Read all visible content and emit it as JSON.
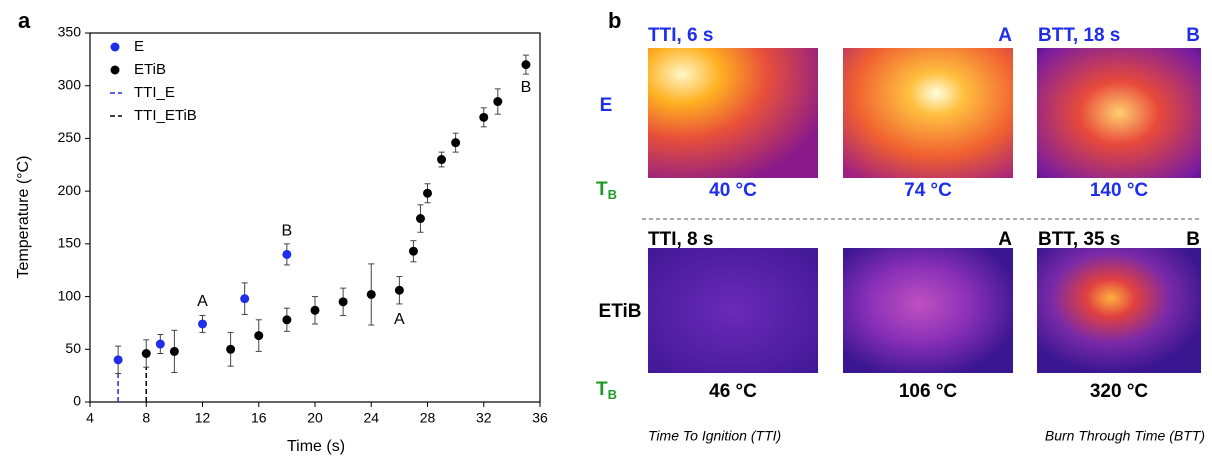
{
  "chart_data": {
    "type": "scatter",
    "panel_label": "a",
    "xlabel": "Time (s)",
    "ylabel": "Temperature (°C)",
    "xlim": [
      4,
      36
    ],
    "xticks": [
      4,
      8,
      12,
      16,
      20,
      24,
      28,
      32,
      36
    ],
    "ylim": [
      0,
      350
    ],
    "yticks": [
      0,
      50,
      100,
      150,
      200,
      250,
      300,
      350
    ],
    "legend": "upper left",
    "series": [
      {
        "name": "E",
        "color": "#1f2ee8",
        "x": [
          6,
          9,
          12,
          15,
          18
        ],
        "values": [
          40,
          55,
          74,
          98,
          140
        ],
        "errors": [
          13,
          9,
          8,
          15,
          10
        ]
      },
      {
        "name": "ETiB",
        "color": "#000000",
        "x": [
          8,
          10,
          14,
          16,
          18,
          20,
          22,
          24,
          26,
          27,
          27.5,
          28,
          29,
          30,
          32,
          33,
          35
        ],
        "values": [
          46,
          48,
          50,
          63,
          78,
          87,
          95,
          102,
          106,
          143,
          174,
          198,
          230,
          246,
          270,
          285,
          320
        ],
        "errors": [
          13,
          20,
          16,
          15,
          11,
          13,
          13,
          29,
          13,
          10,
          13,
          9,
          7,
          9,
          9,
          12,
          9
        ]
      }
    ],
    "tti_lines": [
      {
        "name": "TTI_E",
        "color": "#1f2ee8",
        "x": 6,
        "y": [
          0,
          27
        ]
      },
      {
        "name": "TTI_ETiB",
        "color": "#000000",
        "x": 8,
        "y": [
          0,
          33
        ]
      }
    ],
    "annotations": [
      {
        "text": "A",
        "x": 12,
        "y": 95,
        "color": "#1f2ee8"
      },
      {
        "text": "B",
        "x": 18,
        "y": 162,
        "color": "#1f2ee8"
      },
      {
        "text": "A",
        "x": 26,
        "y": 78,
        "color": "#000000"
      },
      {
        "text": "B",
        "x": 35,
        "y": 298,
        "color": "#000000"
      }
    ]
  },
  "panel_b": {
    "label": "b",
    "rows": [
      {
        "name": "E",
        "tb": {
          "main": "T",
          "sub": "B"
        },
        "header_left": "TTI, 6 s",
        "header_mid": "A",
        "header_right": "BTT, 18 s",
        "header_right_label": "B",
        "temps": [
          "40 °C",
          "74 °C",
          "140 °C"
        ]
      },
      {
        "name": "ETiB",
        "tb": {
          "main": "T",
          "sub": "B"
        },
        "header_left": "TTI, 8 s",
        "header_mid": "A",
        "header_right": "BTT, 35 s",
        "header_right_label": "B",
        "temps": [
          "46 °C",
          "106 °C",
          "320 °C"
        ]
      }
    ],
    "footer_left": "Time To Ignition (TTI)",
    "footer_right": "Burn Through Time (BTT)"
  }
}
